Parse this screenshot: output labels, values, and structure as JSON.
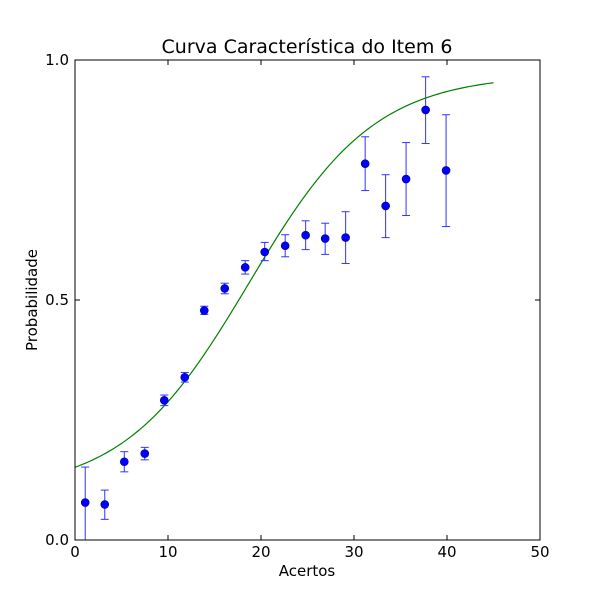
{
  "chart_data": {
    "type": "scatter",
    "title": "Curva Característica do Item 6",
    "xlabel": "Acertos",
    "ylabel": "Probabilidade",
    "xlim": [
      0,
      50
    ],
    "ylim": [
      0.0,
      1.0
    ],
    "xticks": [
      "0",
      "10",
      "20",
      "30",
      "40",
      "50"
    ],
    "yticks": [
      "0.0",
      "0.5",
      "1.0"
    ],
    "grid": false,
    "colors": {
      "points": "#0000ff",
      "errorbars": "#3333ff",
      "curve": "#008000",
      "frame": "#000000"
    },
    "series": [
      {
        "kind": "points-with-errorbars",
        "points": [
          {
            "x": 1.1,
            "y": 0.078,
            "low": 0.0,
            "high": 0.152
          },
          {
            "x": 3.2,
            "y": 0.074,
            "low": 0.043,
            "high": 0.104
          },
          {
            "x": 5.3,
            "y": 0.163,
            "low": 0.142,
            "high": 0.184
          },
          {
            "x": 7.5,
            "y": 0.18,
            "low": 0.167,
            "high": 0.193
          },
          {
            "x": 9.6,
            "y": 0.291,
            "low": 0.28,
            "high": 0.302
          },
          {
            "x": 11.8,
            "y": 0.339,
            "low": 0.329,
            "high": 0.349
          },
          {
            "x": 13.9,
            "y": 0.478,
            "low": 0.47,
            "high": 0.487
          },
          {
            "x": 16.1,
            "y": 0.524,
            "low": 0.513,
            "high": 0.535
          },
          {
            "x": 18.3,
            "y": 0.568,
            "low": 0.554,
            "high": 0.582
          },
          {
            "x": 20.4,
            "y": 0.6,
            "low": 0.582,
            "high": 0.62
          },
          {
            "x": 22.6,
            "y": 0.613,
            "low": 0.59,
            "high": 0.636
          },
          {
            "x": 24.8,
            "y": 0.635,
            "low": 0.605,
            "high": 0.665
          },
          {
            "x": 26.9,
            "y": 0.628,
            "low": 0.595,
            "high": 0.66
          },
          {
            "x": 29.1,
            "y": 0.63,
            "low": 0.576,
            "high": 0.684
          },
          {
            "x": 31.2,
            "y": 0.784,
            "low": 0.728,
            "high": 0.84
          },
          {
            "x": 33.4,
            "y": 0.696,
            "low": 0.63,
            "high": 0.761
          },
          {
            "x": 35.6,
            "y": 0.752,
            "low": 0.676,
            "high": 0.828
          },
          {
            "x": 37.7,
            "y": 0.896,
            "low": 0.826,
            "high": 0.965
          },
          {
            "x": 39.9,
            "y": 0.77,
            "low": 0.653,
            "high": 0.886
          }
        ]
      },
      {
        "kind": "logistic-curve",
        "x_range": [
          0,
          45
        ],
        "lower_asymptote": 0.1,
        "upper_asymptote": 0.97,
        "slope": 0.148,
        "location": 18.7
      }
    ]
  }
}
